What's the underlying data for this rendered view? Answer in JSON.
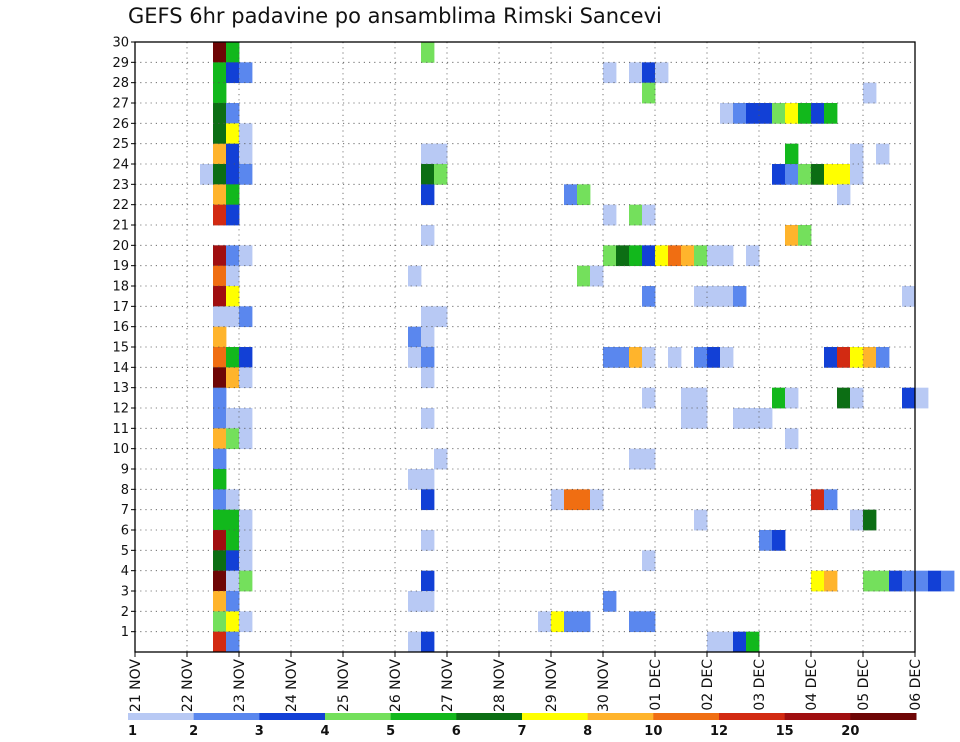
{
  "chart_data": {
    "type": "heatmap",
    "title": "GEFS 6hr padavine po ansamblima Rimski Sancevi",
    "xlabel": "",
    "ylabel": "",
    "x_ticks": [
      "21 NOV",
      "22 NOV",
      "23 NOV",
      "24 NOV",
      "25 NOV",
      "26 NOV",
      "27 NOV",
      "28 NOV",
      "29 NOV",
      "30 NOV",
      "01 DEC",
      "02 DEC",
      "03 DEC",
      "04 DEC",
      "05 DEC",
      "06 DEC"
    ],
    "x_range_days": [
      0,
      15
    ],
    "y_ticks": [
      1,
      2,
      3,
      4,
      5,
      6,
      7,
      8,
      9,
      10,
      11,
      12,
      13,
      14,
      15,
      16,
      17,
      18,
      19,
      20,
      21,
      22,
      23,
      24,
      25,
      26,
      27,
      28,
      29,
      30
    ],
    "y_range": [
      0,
      30
    ],
    "grid": true,
    "colorbar": {
      "position": "bottom",
      "labels": [
        "1",
        "2",
        "3",
        "4",
        "5",
        "6",
        "7",
        "8",
        "10",
        "12",
        "15",
        "20"
      ],
      "colors": [
        "#b8c9f4",
        "#5a87ee",
        "#1240d6",
        "#74e05c",
        "#12b81c",
        "#0c6e14",
        "#ffff00",
        "#ffb42c",
        "#f06e12",
        "#d22a12",
        "#a00e10",
        "#6e0606"
      ]
    },
    "cells": [
      [
        1.75,
        30,
        11
      ],
      [
        2,
        30,
        4
      ],
      [
        5.75,
        30,
        3
      ],
      [
        1.75,
        29,
        4
      ],
      [
        2,
        29,
        2
      ],
      [
        2.25,
        29,
        1
      ],
      [
        9.25,
        29,
        0
      ],
      [
        9.75,
        29,
        0
      ],
      [
        10,
        29,
        2
      ],
      [
        10.25,
        29,
        0
      ],
      [
        1.75,
        28,
        4
      ],
      [
        10,
        28,
        3
      ],
      [
        14.25,
        28,
        0
      ],
      [
        1.75,
        27,
        5
      ],
      [
        2,
        27,
        1
      ],
      [
        11.5,
        27,
        0
      ],
      [
        11.75,
        27,
        1
      ],
      [
        12,
        27,
        2
      ],
      [
        12.25,
        27,
        2
      ],
      [
        12.5,
        27,
        3
      ],
      [
        12.75,
        27,
        6
      ],
      [
        13,
        27,
        4
      ],
      [
        13.25,
        27,
        2
      ],
      [
        13.5,
        27,
        4
      ],
      [
        1.75,
        26,
        5
      ],
      [
        2,
        26,
        6
      ],
      [
        2.25,
        26,
        0
      ],
      [
        1.75,
        25,
        7
      ],
      [
        2,
        25,
        2
      ],
      [
        2.25,
        25,
        0
      ],
      [
        5.75,
        25,
        0
      ],
      [
        6,
        25,
        0
      ],
      [
        12.75,
        25,
        4
      ],
      [
        14,
        25,
        0
      ],
      [
        14.5,
        25,
        0
      ],
      [
        1.5,
        24,
        0
      ],
      [
        1.75,
        24,
        5
      ],
      [
        2,
        24,
        2
      ],
      [
        2.25,
        24,
        1
      ],
      [
        5.75,
        24,
        5
      ],
      [
        6,
        24,
        3
      ],
      [
        12.5,
        24,
        2
      ],
      [
        12.75,
        24,
        1
      ],
      [
        13,
        24,
        3
      ],
      [
        13.25,
        24,
        5
      ],
      [
        13.5,
        24,
        6
      ],
      [
        13.75,
        24,
        6
      ],
      [
        14,
        24,
        0
      ],
      [
        1.75,
        23,
        7
      ],
      [
        2,
        23,
        4
      ],
      [
        5.75,
        23,
        2
      ],
      [
        8.5,
        23,
        1
      ],
      [
        8.75,
        23,
        3
      ],
      [
        13.75,
        23,
        0
      ],
      [
        1.75,
        22,
        9
      ],
      [
        2,
        22,
        2
      ],
      [
        9.25,
        22,
        0
      ],
      [
        9.75,
        22,
        3
      ],
      [
        10,
        22,
        0
      ],
      [
        5.75,
        21,
        0
      ],
      [
        12.75,
        21,
        7
      ],
      [
        13,
        21,
        3
      ],
      [
        1.75,
        20,
        10
      ],
      [
        2,
        20,
        1
      ],
      [
        2.25,
        20,
        0
      ],
      [
        9.25,
        20,
        3
      ],
      [
        9.5,
        20,
        5
      ],
      [
        9.75,
        20,
        4
      ],
      [
        10,
        20,
        2
      ],
      [
        10.25,
        20,
        6
      ],
      [
        10.5,
        20,
        8
      ],
      [
        10.75,
        20,
        7
      ],
      [
        11,
        20,
        3
      ],
      [
        11.25,
        20,
        0
      ],
      [
        11.5,
        20,
        0
      ],
      [
        12,
        20,
        0
      ],
      [
        1.75,
        19,
        8
      ],
      [
        2,
        19,
        0
      ],
      [
        5.5,
        19,
        0
      ],
      [
        8.75,
        19,
        3
      ],
      [
        9,
        19,
        0
      ],
      [
        1.75,
        18,
        10
      ],
      [
        2,
        18,
        6
      ],
      [
        10,
        18,
        1
      ],
      [
        11,
        18,
        0
      ],
      [
        11.25,
        18,
        0
      ],
      [
        11.5,
        18,
        0
      ],
      [
        11.75,
        18,
        1
      ],
      [
        15,
        18,
        0
      ],
      [
        1.75,
        17,
        0
      ],
      [
        2,
        17,
        0
      ],
      [
        2.25,
        17,
        1
      ],
      [
        5.75,
        17,
        0
      ],
      [
        6,
        17,
        0
      ],
      [
        1.75,
        16,
        7
      ],
      [
        5.5,
        16,
        1
      ],
      [
        5.75,
        16,
        0
      ],
      [
        1.75,
        15,
        8
      ],
      [
        2,
        15,
        4
      ],
      [
        2.25,
        15,
        2
      ],
      [
        5.5,
        15,
        0
      ],
      [
        5.75,
        15,
        1
      ],
      [
        9.25,
        15,
        1
      ],
      [
        9.5,
        15,
        1
      ],
      [
        9.75,
        15,
        7
      ],
      [
        10,
        15,
        0
      ],
      [
        10.5,
        15,
        0
      ],
      [
        11,
        15,
        1
      ],
      [
        11.25,
        15,
        2
      ],
      [
        11.5,
        15,
        0
      ],
      [
        13.5,
        15,
        2
      ],
      [
        13.75,
        15,
        9
      ],
      [
        14,
        15,
        6
      ],
      [
        14.25,
        15,
        7
      ],
      [
        14.5,
        15,
        1
      ],
      [
        1.75,
        14,
        11
      ],
      [
        2,
        14,
        7
      ],
      [
        2.25,
        14,
        0
      ],
      [
        5.75,
        14,
        0
      ],
      [
        1.75,
        13,
        1
      ],
      [
        10,
        13,
        0
      ],
      [
        10.75,
        13,
        0
      ],
      [
        11,
        13,
        0
      ],
      [
        12.5,
        13,
        4
      ],
      [
        12.75,
        13,
        0
      ],
      [
        13.75,
        13,
        5
      ],
      [
        14,
        13,
        0
      ],
      [
        15,
        13,
        2
      ],
      [
        15.25,
        13,
        0
      ],
      [
        1.75,
        12,
        1
      ],
      [
        2,
        12,
        0
      ],
      [
        2.25,
        12,
        0
      ],
      [
        5.75,
        12,
        0
      ],
      [
        10.75,
        12,
        0
      ],
      [
        11,
        12,
        0
      ],
      [
        11.75,
        12,
        0
      ],
      [
        12,
        12,
        0
      ],
      [
        12.25,
        12,
        0
      ],
      [
        1.75,
        11,
        7
      ],
      [
        2,
        11,
        3
      ],
      [
        2.25,
        11,
        0
      ],
      [
        12.75,
        11,
        0
      ],
      [
        1.75,
        10,
        1
      ],
      [
        6,
        10,
        0
      ],
      [
        9.75,
        10,
        0
      ],
      [
        10,
        10,
        0
      ],
      [
        1.75,
        9,
        4
      ],
      [
        5.5,
        9,
        0
      ],
      [
        5.75,
        9,
        0
      ],
      [
        1.75,
        8,
        1
      ],
      [
        2,
        8,
        0
      ],
      [
        5.75,
        8,
        2
      ],
      [
        8.25,
        8,
        0
      ],
      [
        8.5,
        8,
        8
      ],
      [
        8.75,
        8,
        8
      ],
      [
        9,
        8,
        0
      ],
      [
        13.25,
        8,
        9
      ],
      [
        13.5,
        8,
        1
      ],
      [
        1.75,
        7,
        4
      ],
      [
        2,
        7,
        4
      ],
      [
        2.25,
        7,
        0
      ],
      [
        11,
        7,
        0
      ],
      [
        14,
        7,
        0
      ],
      [
        14.25,
        7,
        5
      ],
      [
        1.75,
        6,
        10
      ],
      [
        2,
        6,
        4
      ],
      [
        2.25,
        6,
        0
      ],
      [
        5.75,
        6,
        0
      ],
      [
        12.25,
        6,
        1
      ],
      [
        12.5,
        6,
        2
      ],
      [
        1.75,
        5,
        5
      ],
      [
        2,
        5,
        2
      ],
      [
        2.25,
        5,
        0
      ],
      [
        10,
        5,
        0
      ],
      [
        1.75,
        4,
        11
      ],
      [
        2,
        4,
        0
      ],
      [
        2.25,
        4,
        3
      ],
      [
        5.75,
        4,
        2
      ],
      [
        13.25,
        4,
        6
      ],
      [
        13.5,
        4,
        7
      ],
      [
        14.25,
        4,
        3
      ],
      [
        14.5,
        4,
        3
      ],
      [
        14.75,
        4,
        2
      ],
      [
        15,
        4,
        1
      ],
      [
        15.25,
        4,
        1
      ],
      [
        15.5,
        4,
        2
      ],
      [
        15.75,
        4,
        1
      ],
      [
        1.75,
        3,
        7
      ],
      [
        2,
        3,
        1
      ],
      [
        5.5,
        3,
        0
      ],
      [
        5.75,
        3,
        0
      ],
      [
        9.25,
        3,
        1
      ],
      [
        1.75,
        2,
        3
      ],
      [
        2,
        2,
        6
      ],
      [
        2.25,
        2,
        0
      ],
      [
        8,
        2,
        0
      ],
      [
        8.25,
        2,
        6
      ],
      [
        8.5,
        2,
        1
      ],
      [
        8.75,
        2,
        1
      ],
      [
        9.75,
        2,
        1
      ],
      [
        10,
        2,
        1
      ],
      [
        1.75,
        1,
        9
      ],
      [
        2,
        1,
        1
      ],
      [
        5.5,
        1,
        0
      ],
      [
        5.75,
        1,
        2
      ],
      [
        11.25,
        1,
        0
      ],
      [
        11.5,
        1,
        0
      ],
      [
        11.75,
        1,
        2
      ],
      [
        12,
        1,
        4
      ]
    ]
  }
}
